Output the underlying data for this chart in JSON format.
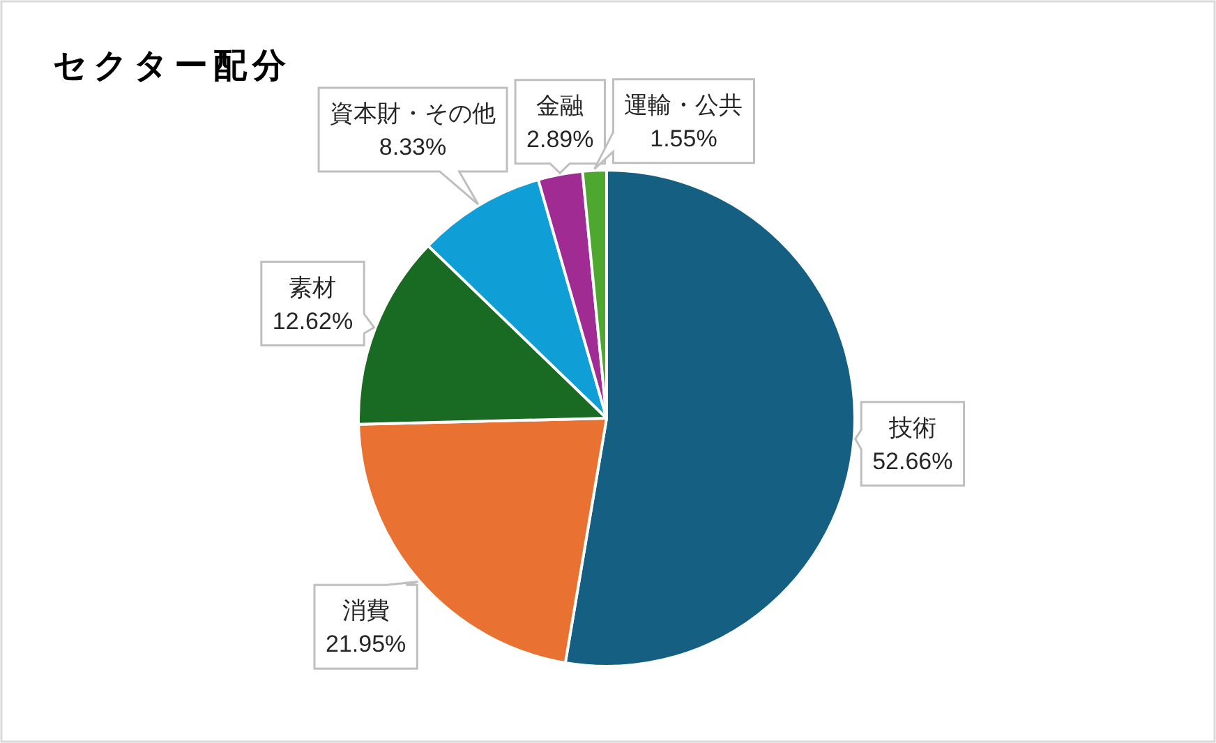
{
  "chart_data": {
    "type": "pie",
    "title": "セクター配分",
    "categories": [
      "技術",
      "消費",
      "素材",
      "資本財・その他",
      "金融",
      "運輸・公共"
    ],
    "values": [
      52.66,
      21.95,
      12.62,
      8.33,
      2.89,
      1.55
    ],
    "colors": [
      "#156082",
      "#e97132",
      "#196b24",
      "#0f9ed5",
      "#a02b93",
      "#4ea72e"
    ],
    "value_labels": [
      "52.66%",
      "21.95%",
      "12.62%",
      "8.33%",
      "2.89%",
      "1.55%"
    ]
  }
}
